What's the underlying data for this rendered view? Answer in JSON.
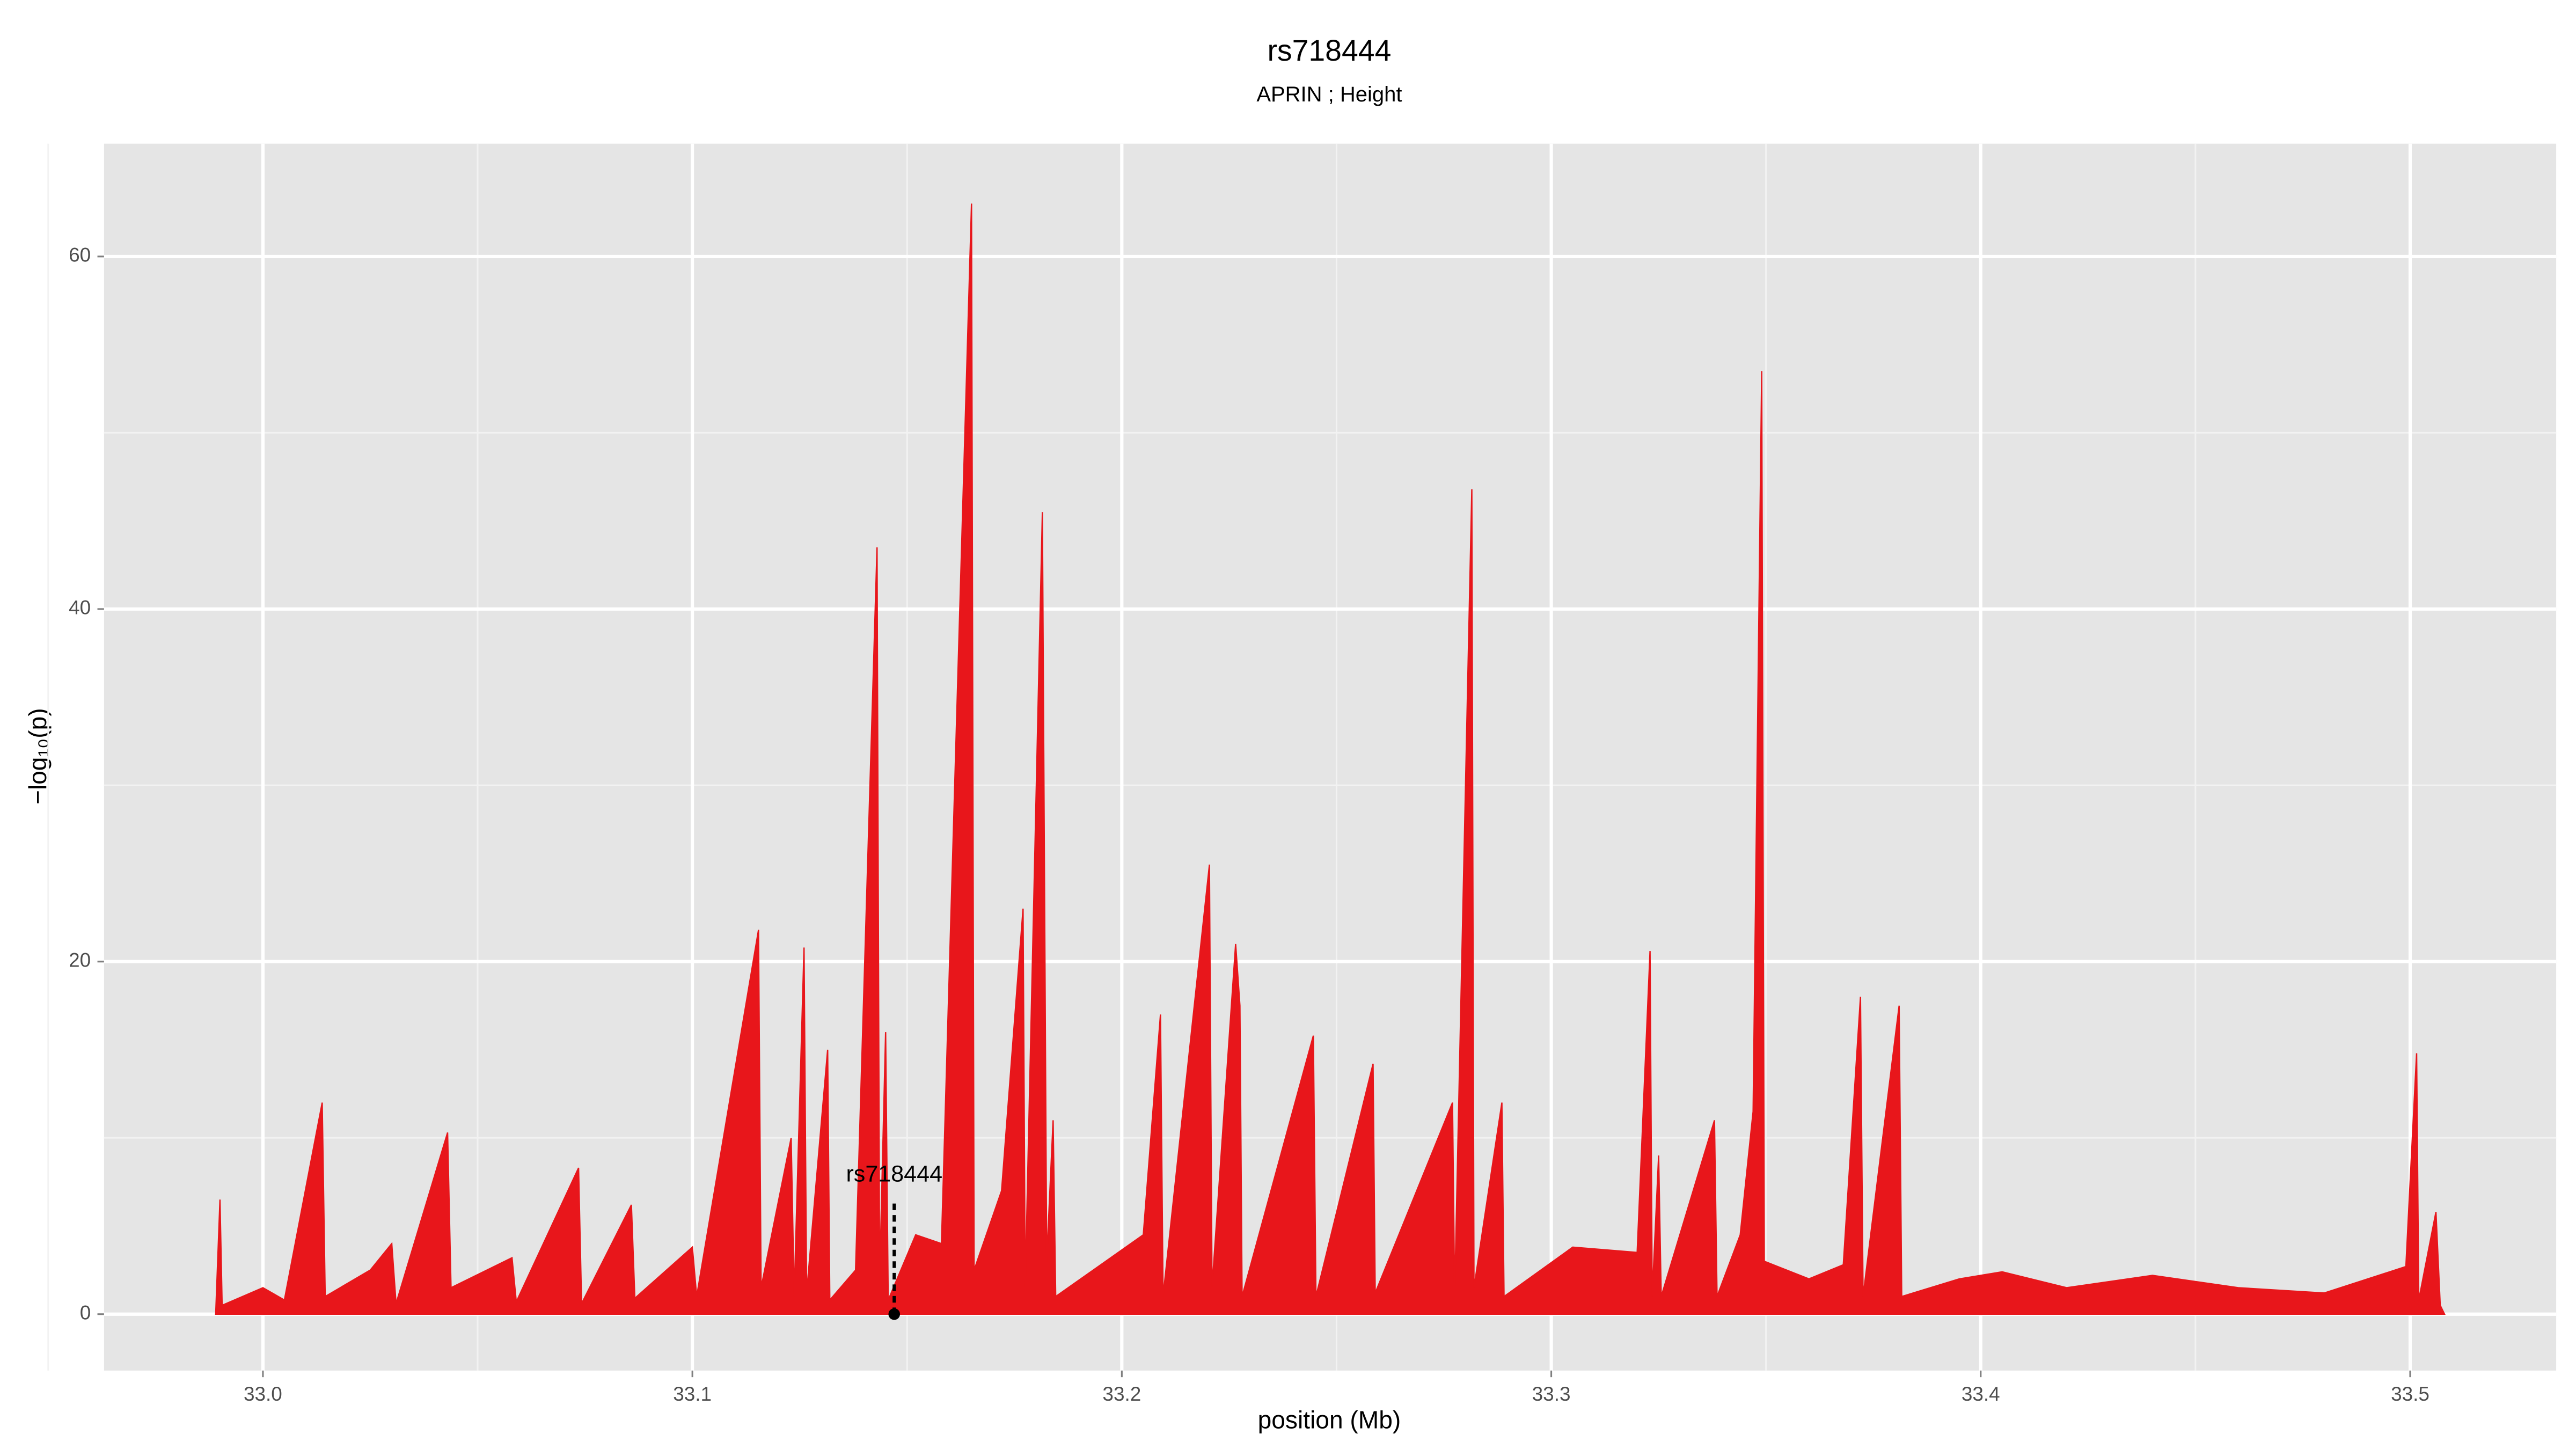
{
  "chart_data": {
    "type": "area",
    "title": "rs718444",
    "subtitle": "APRIN ; Height",
    "x_label": "position (Mb)",
    "y_label": "−log₁₀(p)",
    "xlim": [
      32.963,
      33.534
    ],
    "ylim": [
      -3.2,
      66.4
    ],
    "xticks": [
      {
        "value": 33,
        "label": "33.0"
      },
      33.1,
      33.2,
      33.3,
      33.4,
      33.5
    ],
    "yticks": [
      0,
      20,
      40,
      60
    ],
    "grid": true,
    "series": [
      {
        "color": "#e8161b",
        "x": [
          32.989,
          32.99,
          32.9905,
          33.0,
          33.005,
          33.0138,
          33.0145,
          33.025,
          33.03,
          33.031,
          33.043,
          33.0438,
          33.058,
          33.059,
          33.0735,
          33.0742,
          33.0858,
          33.0866,
          33.1,
          33.101,
          33.1154,
          33.116,
          33.123,
          33.1237,
          33.126,
          33.1266,
          33.1315,
          33.132,
          33.138,
          33.143,
          33.1436,
          33.145,
          33.1456,
          33.152,
          33.158,
          33.165,
          33.1656,
          33.172,
          33.177,
          33.1775,
          33.1815,
          33.1825,
          33.184,
          33.1846,
          33.205,
          33.209,
          33.2096,
          33.2204,
          33.221,
          33.2265,
          33.2275,
          33.228,
          33.2446,
          33.2452,
          33.2585,
          33.259,
          33.277,
          33.2775,
          33.2815,
          33.282,
          33.2885,
          33.289,
          33.305,
          33.32,
          33.323,
          33.3235,
          33.325,
          33.3256,
          33.338,
          33.3386,
          33.344,
          33.347,
          33.349,
          33.3496,
          33.36,
          33.368,
          33.372,
          33.3726,
          33.381,
          33.3816,
          33.395,
          33.405,
          33.42,
          33.44,
          33.46,
          33.48,
          33.499,
          33.5015,
          33.502,
          33.506,
          33.507,
          33.508
        ],
        "values": [
          0,
          6.5,
          0.5,
          1.5,
          0.8,
          12,
          1,
          2.5,
          4,
          0.6,
          10.3,
          1.5,
          3.2,
          0.7,
          8.3,
          0.6,
          6.2,
          0.9,
          3.8,
          1,
          21.8,
          1.5,
          10,
          1,
          20.8,
          1.2,
          15,
          0.8,
          2.5,
          43.5,
          2,
          16,
          0.8,
          4.5,
          4,
          63,
          2.5,
          7,
          23,
          1.5,
          45.5,
          3,
          11,
          1,
          4.5,
          17,
          1,
          25.5,
          1.5,
          21,
          17.5,
          1,
          15.8,
          1,
          14.2,
          1.2,
          12,
          1,
          46.8,
          1.5,
          12,
          1,
          3.8,
          3.5,
          20.6,
          1,
          9,
          1,
          11,
          1,
          4.5,
          11.5,
          53.5,
          3,
          2,
          2.8,
          18,
          1,
          17.5,
          1,
          2,
          2.4,
          1.5,
          2.2,
          1.5,
          1.2,
          2.7,
          14.8,
          0.8,
          5.8,
          0.5,
          0
        ]
      }
    ],
    "annotations": [
      {
        "text": "rs718444",
        "x": 33.147,
        "y": 0
      }
    ]
  }
}
